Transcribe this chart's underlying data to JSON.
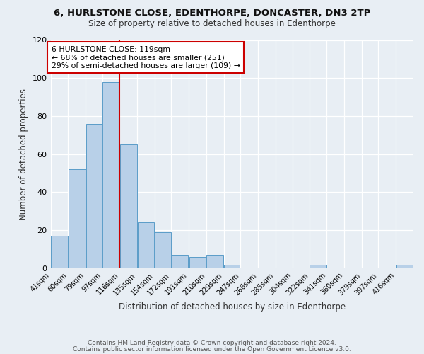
{
  "title1": "6, HURLSTONE CLOSE, EDENTHORPE, DONCASTER, DN3 2TP",
  "title2": "Size of property relative to detached houses in Edenthorpe",
  "xlabel": "Distribution of detached houses by size in Edenthorpe",
  "ylabel": "Number of detached properties",
  "bin_labels": [
    "41sqm",
    "60sqm",
    "79sqm",
    "97sqm",
    "116sqm",
    "135sqm",
    "154sqm",
    "172sqm",
    "191sqm",
    "210sqm",
    "229sqm",
    "247sqm",
    "266sqm",
    "285sqm",
    "304sqm",
    "322sqm",
    "341sqm",
    "360sqm",
    "379sqm",
    "397sqm",
    "416sqm"
  ],
  "bin_edges": [
    41,
    60,
    79,
    97,
    116,
    135,
    154,
    172,
    191,
    210,
    229,
    247,
    266,
    285,
    304,
    322,
    341,
    360,
    379,
    397,
    416,
    435
  ],
  "bar_heights": [
    17,
    52,
    76,
    98,
    65,
    24,
    19,
    7,
    6,
    7,
    2,
    0,
    0,
    0,
    0,
    2,
    0,
    0,
    0,
    0,
    2
  ],
  "bar_color": "#b8d0e8",
  "bar_edge_color": "#5a9cc8",
  "ref_line_x": 116,
  "ref_box_text": "6 HURLSTONE CLOSE: 119sqm\n← 68% of detached houses are smaller (251)\n29% of semi-detached houses are larger (109) →",
  "ref_box_color": "#cc0000",
  "ylim": [
    0,
    120
  ],
  "yticks": [
    0,
    20,
    40,
    60,
    80,
    100,
    120
  ],
  "background_color": "#e8eef4",
  "footer1": "Contains HM Land Registry data © Crown copyright and database right 2024.",
  "footer2": "Contains public sector information licensed under the Open Government Licence v3.0."
}
